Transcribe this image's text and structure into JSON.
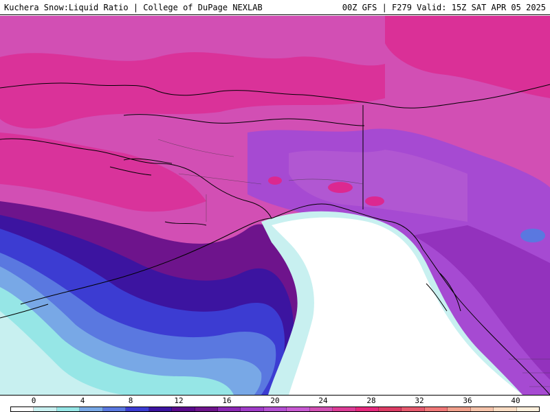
{
  "header": {
    "left_title": "Kuchera Snow:Liquid Ratio | College of DuPage NEXLAB",
    "right_title": "00Z GFS | F279 Valid: 15Z SAT APR 05 2025"
  },
  "colorbar": {
    "ticks": [
      "0",
      "4",
      "8",
      "12",
      "16",
      "20",
      "24",
      "28",
      "32",
      "36",
      "40"
    ],
    "colors": [
      "#ffffff",
      "#c8f0f0",
      "#96e6e6",
      "#78a8e6",
      "#5a78e0",
      "#3c3cd2",
      "#3c14a0",
      "#5a0a8c",
      "#6e148c",
      "#8c28b4",
      "#a03cc8",
      "#b450d2",
      "#c85ad2",
      "#d250b4",
      "#dc3c96",
      "#e6287d",
      "#dc3c64",
      "#e65a6e",
      "#f07878",
      "#f0a08c",
      "#f5c3aa",
      "#fadcc3",
      "#fff0dc"
    ]
  },
  "map": {
    "region": "Alaska and Northeast Pacific",
    "colors": {
      "land_outline": "#000000",
      "ocean_white": "#ffffff",
      "light_cyan": "#c8f0f0",
      "cyan": "#96e6e6",
      "light_blue": "#78a8e6",
      "blue": "#5a78e0",
      "deep_blue": "#3c3cd2",
      "indigo": "#3c14a0",
      "purple": "#6e148c",
      "violet": "#a03cc8",
      "orchid": "#c850c8",
      "magenta": "#d250b4",
      "deep_magenta": "#dc2890"
    }
  }
}
